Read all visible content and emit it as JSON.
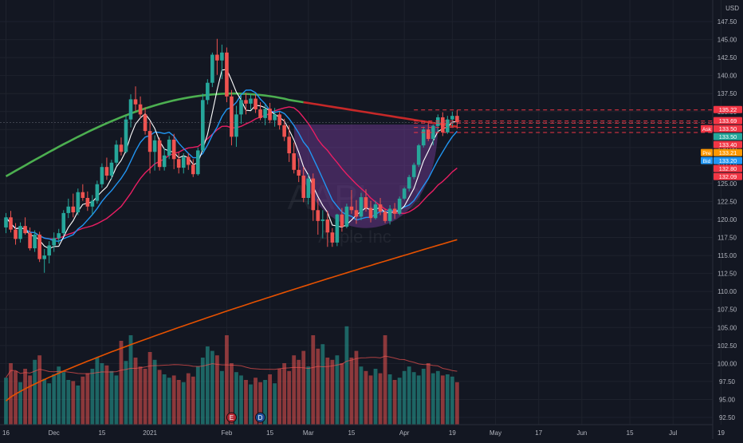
{
  "chart_data": {
    "type": "candlestick",
    "symbol": "AAPL",
    "watermark_symbol": "AAPL, D",
    "watermark_name": "Apple Inc",
    "currency_label": "USD",
    "y_axis": {
      "ylim": [
        91.5,
        150.5
      ],
      "ticks": [
        "147.50",
        "145.00",
        "142.50",
        "140.00",
        "137.50",
        "135.00",
        "132.50",
        "130.00",
        "127.50",
        "125.00",
        "122.50",
        "120.00",
        "117.50",
        "115.00",
        "112.50",
        "110.00",
        "107.50",
        "105.00",
        "102.50",
        "100.00",
        "97.50",
        "95.00",
        "92.50"
      ]
    },
    "x_axis": {
      "ticks": [
        {
          "label": "16",
          "bar": 0
        },
        {
          "label": "Dec",
          "bar": 10
        },
        {
          "label": "15",
          "bar": 20
        },
        {
          "label": "2021",
          "bar": 30
        },
        {
          "label": "Feb",
          "bar": 46
        },
        {
          "label": "15",
          "bar": 55
        },
        {
          "label": "Mar",
          "bar": 63
        },
        {
          "label": "15",
          "bar": 72
        },
        {
          "label": "Apr",
          "bar": 83
        },
        {
          "label": "19",
          "bar": 93
        },
        {
          "label": "May",
          "bar": 102
        },
        {
          "label": "17",
          "bar": 111
        },
        {
          "label": "Jun",
          "bar": 120
        },
        {
          "label": "15",
          "bar": 130
        },
        {
          "label": "Jul",
          "bar": 139
        },
        {
          "label": "19",
          "bar": 149
        }
      ]
    },
    "candles": [
      {
        "o": 118.9,
        "h": 120.9,
        "l": 118.1,
        "c": 120.3
      },
      {
        "o": 120.3,
        "h": 121.2,
        "l": 118.2,
        "c": 118.6
      },
      {
        "o": 118.6,
        "h": 119.5,
        "l": 116.5,
        "c": 117.3
      },
      {
        "o": 117.3,
        "h": 119.6,
        "l": 116.8,
        "c": 119.1
      },
      {
        "o": 119.1,
        "h": 120.3,
        "l": 117.9,
        "c": 118.1
      },
      {
        "o": 118.1,
        "h": 118.9,
        "l": 115.7,
        "c": 116.0
      },
      {
        "o": 116.0,
        "h": 118.5,
        "l": 115.5,
        "c": 117.9
      },
      {
        "o": 117.9,
        "h": 118.3,
        "l": 114.1,
        "c": 114.5
      },
      {
        "o": 114.5,
        "h": 115.9,
        "l": 112.6,
        "c": 115.0
      },
      {
        "o": 115.0,
        "h": 117.0,
        "l": 113.9,
        "c": 116.4
      },
      {
        "o": 116.4,
        "h": 118.2,
        "l": 115.5,
        "c": 117.4
      },
      {
        "o": 117.4,
        "h": 118.7,
        "l": 116.6,
        "c": 118.1
      },
      {
        "o": 118.1,
        "h": 121.3,
        "l": 117.7,
        "c": 120.9
      },
      {
        "o": 120.9,
        "h": 122.9,
        "l": 120.2,
        "c": 121.8
      },
      {
        "o": 121.8,
        "h": 123.6,
        "l": 120.3,
        "c": 121.0
      },
      {
        "o": 121.0,
        "h": 124.3,
        "l": 120.6,
        "c": 123.8
      },
      {
        "o": 123.8,
        "h": 124.9,
        "l": 122.6,
        "c": 123.0
      },
      {
        "o": 123.0,
        "h": 123.9,
        "l": 121.2,
        "c": 121.8
      },
      {
        "o": 121.8,
        "h": 123.4,
        "l": 120.6,
        "c": 122.6
      },
      {
        "o": 122.6,
        "h": 125.4,
        "l": 122.2,
        "c": 124.9
      },
      {
        "o": 124.9,
        "h": 127.8,
        "l": 124.4,
        "c": 127.3
      },
      {
        "o": 127.3,
        "h": 128.6,
        "l": 125.5,
        "c": 126.1
      },
      {
        "o": 126.1,
        "h": 128.3,
        "l": 125.6,
        "c": 127.9
      },
      {
        "o": 127.9,
        "h": 131.0,
        "l": 127.5,
        "c": 130.4
      },
      {
        "o": 130.4,
        "h": 131.4,
        "l": 128.9,
        "c": 129.4
      },
      {
        "o": 129.4,
        "h": 134.4,
        "l": 129.2,
        "c": 133.9
      },
      {
        "o": 133.9,
        "h": 137.4,
        "l": 132.8,
        "c": 136.7
      },
      {
        "o": 136.7,
        "h": 138.5,
        "l": 135.1,
        "c": 136.0
      },
      {
        "o": 136.0,
        "h": 137.1,
        "l": 134.1,
        "c": 134.6
      },
      {
        "o": 134.6,
        "h": 135.6,
        "l": 131.8,
        "c": 132.3
      },
      {
        "o": 132.3,
        "h": 133.6,
        "l": 126.4,
        "c": 129.4
      },
      {
        "o": 129.4,
        "h": 131.7,
        "l": 126.8,
        "c": 131.0
      },
      {
        "o": 131.0,
        "h": 131.4,
        "l": 126.8,
        "c": 127.3
      },
      {
        "o": 127.3,
        "h": 129.9,
        "l": 126.8,
        "c": 128.9
      },
      {
        "o": 128.9,
        "h": 131.6,
        "l": 128.4,
        "c": 131.1
      },
      {
        "o": 131.1,
        "h": 131.9,
        "l": 127.0,
        "c": 128.4
      },
      {
        "o": 128.4,
        "h": 129.3,
        "l": 126.4,
        "c": 127.2
      },
      {
        "o": 127.2,
        "h": 129.2,
        "l": 126.4,
        "c": 128.7
      },
      {
        "o": 128.7,
        "h": 129.2,
        "l": 126.9,
        "c": 127.6
      },
      {
        "o": 127.6,
        "h": 128.4,
        "l": 125.9,
        "c": 126.3
      },
      {
        "o": 126.3,
        "h": 130.0,
        "l": 126.1,
        "c": 129.6
      },
      {
        "o": 129.6,
        "h": 137.5,
        "l": 129.4,
        "c": 136.6
      },
      {
        "o": 136.6,
        "h": 139.5,
        "l": 136.0,
        "c": 139.0
      },
      {
        "o": 139.0,
        "h": 143.2,
        "l": 138.4,
        "c": 142.9
      },
      {
        "o": 142.9,
        "h": 145.1,
        "l": 140.1,
        "c": 142.1
      },
      {
        "o": 142.1,
        "h": 144.3,
        "l": 139.5,
        "c": 143.2
      },
      {
        "o": 143.2,
        "h": 143.9,
        "l": 136.3,
        "c": 137.1
      },
      {
        "o": 137.1,
        "h": 138.0,
        "l": 130.3,
        "c": 131.5
      },
      {
        "o": 131.5,
        "h": 135.8,
        "l": 130.1,
        "c": 134.6
      },
      {
        "o": 134.6,
        "h": 137.2,
        "l": 133.3,
        "c": 136.6
      },
      {
        "o": 136.6,
        "h": 137.6,
        "l": 134.6,
        "c": 136.1
      },
      {
        "o": 136.1,
        "h": 137.4,
        "l": 135.2,
        "c": 136.8
      },
      {
        "o": 136.8,
        "h": 137.4,
        "l": 134.8,
        "c": 135.3
      },
      {
        "o": 135.3,
        "h": 136.3,
        "l": 133.8,
        "c": 134.1
      },
      {
        "o": 134.1,
        "h": 136.0,
        "l": 133.1,
        "c": 135.4
      },
      {
        "o": 135.4,
        "h": 136.2,
        "l": 133.4,
        "c": 133.8
      },
      {
        "o": 133.8,
        "h": 135.5,
        "l": 132.9,
        "c": 134.6
      },
      {
        "o": 134.6,
        "h": 135.0,
        "l": 132.5,
        "c": 133.1
      },
      {
        "o": 133.1,
        "h": 134.0,
        "l": 130.9,
        "c": 131.5
      },
      {
        "o": 131.5,
        "h": 133.1,
        "l": 128.0,
        "c": 129.2
      },
      {
        "o": 129.2,
        "h": 130.7,
        "l": 126.4,
        "c": 126.9
      },
      {
        "o": 126.9,
        "h": 128.5,
        "l": 125.2,
        "c": 126.1
      },
      {
        "o": 126.1,
        "h": 127.3,
        "l": 122.4,
        "c": 123.0
      },
      {
        "o": 123.0,
        "h": 126.4,
        "l": 122.1,
        "c": 125.7
      },
      {
        "o": 125.7,
        "h": 126.4,
        "l": 119.8,
        "c": 121.3
      },
      {
        "o": 121.3,
        "h": 122.9,
        "l": 117.9,
        "c": 119.8
      },
      {
        "o": 119.8,
        "h": 121.3,
        "l": 117.4,
        "c": 120.0
      },
      {
        "o": 120.0,
        "h": 121.2,
        "l": 116.2,
        "c": 118.2
      },
      {
        "o": 118.2,
        "h": 118.8,
        "l": 116.2,
        "c": 116.8
      },
      {
        "o": 116.8,
        "h": 120.8,
        "l": 116.3,
        "c": 120.7
      },
      {
        "o": 120.7,
        "h": 121.6,
        "l": 118.3,
        "c": 119.0
      },
      {
        "o": 119.0,
        "h": 122.2,
        "l": 118.8,
        "c": 121.8
      },
      {
        "o": 121.8,
        "h": 124.1,
        "l": 120.8,
        "c": 121.3
      },
      {
        "o": 121.3,
        "h": 122.7,
        "l": 119.4,
        "c": 120.4
      },
      {
        "o": 120.4,
        "h": 123.7,
        "l": 119.9,
        "c": 123.1
      },
      {
        "o": 123.1,
        "h": 124.2,
        "l": 121.1,
        "c": 121.6
      },
      {
        "o": 121.6,
        "h": 122.6,
        "l": 119.6,
        "c": 120.2
      },
      {
        "o": 120.2,
        "h": 122.6,
        "l": 120.0,
        "c": 122.1
      },
      {
        "o": 122.1,
        "h": 123.0,
        "l": 120.6,
        "c": 121.1
      },
      {
        "o": 121.1,
        "h": 121.5,
        "l": 119.5,
        "c": 119.8
      },
      {
        "o": 119.8,
        "h": 122.0,
        "l": 119.3,
        "c": 121.5
      },
      {
        "o": 121.5,
        "h": 122.3,
        "l": 120.1,
        "c": 120.8
      },
      {
        "o": 120.8,
        "h": 123.2,
        "l": 120.6,
        "c": 122.9
      },
      {
        "o": 122.9,
        "h": 124.5,
        "l": 122.7,
        "c": 124.3
      },
      {
        "o": 124.3,
        "h": 126.2,
        "l": 123.9,
        "c": 125.9
      },
      {
        "o": 125.9,
        "h": 127.9,
        "l": 125.6,
        "c": 127.6
      },
      {
        "o": 127.6,
        "h": 130.5,
        "l": 127.3,
        "c": 130.3
      },
      {
        "o": 130.3,
        "h": 132.9,
        "l": 130.0,
        "c": 132.5
      },
      {
        "o": 132.5,
        "h": 133.4,
        "l": 130.9,
        "c": 131.2
      },
      {
        "o": 131.2,
        "h": 133.2,
        "l": 130.3,
        "c": 133.0
      },
      {
        "o": 133.0,
        "h": 134.6,
        "l": 132.2,
        "c": 134.2
      },
      {
        "o": 134.2,
        "h": 134.9,
        "l": 131.6,
        "c": 132.1
      },
      {
        "o": 132.1,
        "h": 134.4,
        "l": 131.9,
        "c": 133.9
      },
      {
        "o": 133.9,
        "h": 135.0,
        "l": 132.9,
        "c": 134.4
      },
      {
        "o": 134.4,
        "h": 135.2,
        "l": 132.6,
        "c": 133.5
      }
    ],
    "volume": [
      0.42,
      0.55,
      0.48,
      0.38,
      0.5,
      0.44,
      0.58,
      0.62,
      0.41,
      0.37,
      0.45,
      0.52,
      0.47,
      0.4,
      0.39,
      0.35,
      0.43,
      0.46,
      0.5,
      0.6,
      0.55,
      0.53,
      0.48,
      0.44,
      0.75,
      0.57,
      0.8,
      0.6,
      0.52,
      0.5,
      0.65,
      0.58,
      0.49,
      0.45,
      0.42,
      0.44,
      0.4,
      0.38,
      0.46,
      0.43,
      0.52,
      0.6,
      0.7,
      0.66,
      0.62,
      0.48,
      0.8,
      0.55,
      0.47,
      0.44,
      0.4,
      0.36,
      0.42,
      0.38,
      0.4,
      0.45,
      0.37,
      0.5,
      0.55,
      0.48,
      0.62,
      0.58,
      0.66,
      0.52,
      0.8,
      0.68,
      0.72,
      0.6,
      0.58,
      0.62,
      0.55,
      0.88,
      0.6,
      0.66,
      0.52,
      0.48,
      0.44,
      0.5,
      0.46,
      0.8,
      0.45,
      0.4,
      0.42,
      0.48,
      0.52,
      0.47,
      0.44,
      0.5,
      0.55,
      0.46,
      0.48,
      0.44,
      0.45,
      0.43,
      0.38
    ],
    "volume_up_color": "#26a69a",
    "volume_down_color": "#ef5350",
    "up_color": "#26a69a",
    "down_color": "#ef5350",
    "moving_averages": [
      {
        "color": "#ffffff",
        "period": 5
      },
      {
        "color": "#2196f3",
        "period": 10
      },
      {
        "color": "#e91e63",
        "period": 20
      },
      {
        "color": "#e65100",
        "role": "long-term"
      },
      {
        "color": "#4caf50",
        "role": "mid-term",
        "color_down": "#c62828"
      }
    ],
    "price_lines": [
      {
        "value": 135.22,
        "label": "135.22",
        "color": "#f23645"
      },
      {
        "value": 133.69,
        "label": "133.69",
        "color": "#f23645"
      },
      {
        "value": 133.4,
        "label": "133.40",
        "color": "#f23645"
      },
      {
        "value": 132.8,
        "label": "132.80",
        "color": "#f23645"
      },
      {
        "value": 132.09,
        "label": "132.09",
        "color": "#f23645"
      }
    ],
    "price_badges": [
      {
        "tag": "Ask",
        "value": 133.5,
        "label": "133.50",
        "color": "#f23645"
      },
      {
        "tag": "",
        "value": 133.5,
        "label": "133.50",
        "color": "#26a69a"
      },
      {
        "tag": "Pre",
        "value": 133.21,
        "label": "133.21",
        "color": "#ff9800"
      },
      {
        "tag": "Bid",
        "value": 133.2,
        "label": "133.20",
        "color": "#2196f3"
      }
    ],
    "events": [
      {
        "label": "E",
        "bar": 47,
        "color": "#b22833"
      },
      {
        "label": "D",
        "bar": 53,
        "color": "#1e4f99"
      }
    ],
    "pattern": {
      "type": "cup",
      "start_bar": 60,
      "end_bar": 90,
      "rim_value": 133.2,
      "bottom_value": 117.9,
      "color": "#7b3fa0"
    },
    "grid": true,
    "background": "#131722"
  }
}
